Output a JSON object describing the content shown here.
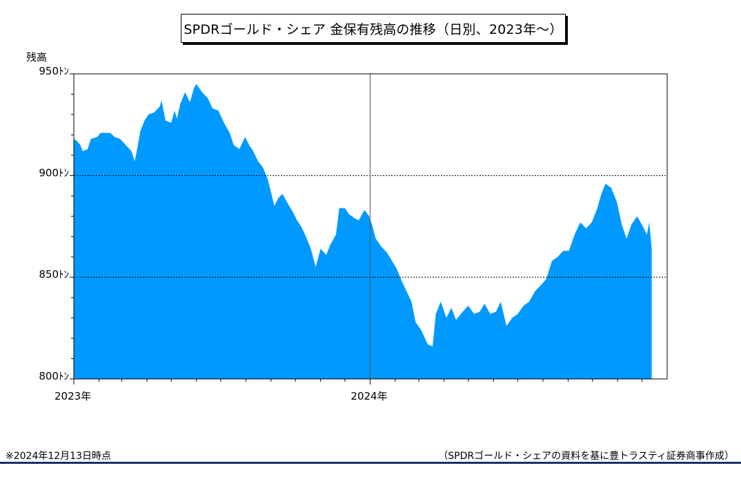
{
  "title": "SPDRゴールド・シェア 金保有残高の推移（日別、2023年～）",
  "y_axis_title": "残高",
  "footnote": "※2024年12月13日時点",
  "source": "（SPDRゴールド・シェアの資料を基に豊トラスティ証券商事作成）",
  "colors": {
    "area": "#0099ff",
    "rule": "#1b2f6b"
  },
  "chart_data": {
    "type": "area",
    "y_tick_labels": [
      "800ﾄﾝ",
      "850ﾄﾝ",
      "900ﾄﾝ",
      "950ﾄﾝ"
    ],
    "y_ticks": [
      800,
      850,
      900,
      950
    ],
    "ylim": [
      800,
      950
    ],
    "x_tick_labels": [
      "2023年",
      "2024年"
    ],
    "xlim": [
      "2023-01-01",
      "2025-01-01"
    ],
    "x_label_dates": [
      "2023-01-01",
      "2024-01-01"
    ],
    "x_minor_tick_months": [
      "2023-02-01",
      "2023-03-01",
      "2023-04-01",
      "2023-05-01",
      "2023-06-01",
      "2023-07-01",
      "2023-08-01",
      "2023-09-01",
      "2023-10-01",
      "2023-11-01",
      "2023-12-01",
      "2024-02-01",
      "2024-03-01",
      "2024-04-01",
      "2024-05-01",
      "2024-06-01",
      "2024-07-01",
      "2024-08-01",
      "2024-09-01",
      "2024-10-01",
      "2024-11-01",
      "2024-12-01"
    ],
    "grid": {
      "vertical_at": [
        "2024-01-01"
      ],
      "horizontal_dotted_at": [
        850,
        900
      ]
    },
    "series": [
      {
        "values": [
          [
            "2023-01-01",
            918
          ],
          [
            "2023-01-05",
            917
          ],
          [
            "2023-01-09",
            915
          ],
          [
            "2023-01-12",
            912
          ],
          [
            "2023-01-18",
            913
          ],
          [
            "2023-01-22",
            918
          ],
          [
            "2023-01-30",
            919
          ],
          [
            "2023-02-03",
            921
          ],
          [
            "2023-02-15",
            921
          ],
          [
            "2023-02-20",
            919
          ],
          [
            "2023-02-27",
            918
          ],
          [
            "2023-03-06",
            915
          ],
          [
            "2023-03-13",
            912
          ],
          [
            "2023-03-17",
            907
          ],
          [
            "2023-03-20",
            913
          ],
          [
            "2023-03-24",
            922
          ],
          [
            "2023-03-29",
            927
          ],
          [
            "2023-04-03",
            930
          ],
          [
            "2023-04-10",
            931
          ],
          [
            "2023-04-17",
            934
          ],
          [
            "2023-04-19",
            937
          ],
          [
            "2023-04-24",
            927
          ],
          [
            "2023-05-01",
            926
          ],
          [
            "2023-05-05",
            932
          ],
          [
            "2023-05-08",
            928
          ],
          [
            "2023-05-12",
            935
          ],
          [
            "2023-05-18",
            941
          ],
          [
            "2023-05-24",
            936
          ],
          [
            "2023-05-29",
            943
          ],
          [
            "2023-06-01",
            945
          ],
          [
            "2023-06-08",
            941
          ],
          [
            "2023-06-15",
            938
          ],
          [
            "2023-06-21",
            933
          ],
          [
            "2023-06-28",
            932
          ],
          [
            "2023-07-05",
            926
          ],
          [
            "2023-07-12",
            921
          ],
          [
            "2023-07-17",
            915
          ],
          [
            "2023-07-24",
            913
          ],
          [
            "2023-07-31",
            919
          ],
          [
            "2023-08-05",
            915
          ],
          [
            "2023-08-10",
            912
          ],
          [
            "2023-08-16",
            907
          ],
          [
            "2023-08-22",
            904
          ],
          [
            "2023-08-28",
            898
          ],
          [
            "2023-09-02",
            890
          ],
          [
            "2023-09-05",
            885
          ],
          [
            "2023-09-10",
            889
          ],
          [
            "2023-09-15",
            891
          ],
          [
            "2023-09-22",
            886
          ],
          [
            "2023-09-28",
            882
          ],
          [
            "2023-10-03",
            878
          ],
          [
            "2023-10-08",
            875
          ],
          [
            "2023-10-14",
            870
          ],
          [
            "2023-10-20",
            864
          ],
          [
            "2023-10-26",
            855
          ],
          [
            "2023-11-01",
            864
          ],
          [
            "2023-11-08",
            861
          ],
          [
            "2023-11-13",
            866
          ],
          [
            "2023-11-20",
            871
          ],
          [
            "2023-11-24",
            884
          ],
          [
            "2023-12-01",
            884
          ],
          [
            "2023-12-06",
            881
          ],
          [
            "2023-12-13",
            879
          ],
          [
            "2023-12-18",
            878
          ],
          [
            "2023-12-25",
            883
          ],
          [
            "2023-12-31",
            880
          ],
          [
            "2024-01-04",
            875
          ],
          [
            "2024-01-08",
            869
          ],
          [
            "2024-01-15",
            865
          ],
          [
            "2024-01-22",
            862
          ],
          [
            "2024-01-28",
            858
          ],
          [
            "2024-02-03",
            854
          ],
          [
            "2024-02-08",
            849
          ],
          [
            "2024-02-15",
            843
          ],
          [
            "2024-02-21",
            838
          ],
          [
            "2024-02-26",
            828
          ],
          [
            "2024-03-04",
            824
          ],
          [
            "2024-03-12",
            817
          ],
          [
            "2024-03-18",
            816
          ],
          [
            "2024-03-22",
            832
          ],
          [
            "2024-03-28",
            838
          ],
          [
            "2024-04-04",
            830
          ],
          [
            "2024-04-10",
            835
          ],
          [
            "2024-04-16",
            829
          ],
          [
            "2024-04-24",
            833
          ],
          [
            "2024-05-01",
            836
          ],
          [
            "2024-05-08",
            832
          ],
          [
            "2024-05-15",
            833
          ],
          [
            "2024-05-21",
            837
          ],
          [
            "2024-05-28",
            832
          ],
          [
            "2024-06-04",
            833
          ],
          [
            "2024-06-10",
            838
          ],
          [
            "2024-06-17",
            826
          ],
          [
            "2024-06-24",
            830
          ],
          [
            "2024-07-01",
            832
          ],
          [
            "2024-07-08",
            836
          ],
          [
            "2024-07-15",
            838
          ],
          [
            "2024-07-22",
            843
          ],
          [
            "2024-07-29",
            846
          ],
          [
            "2024-08-05",
            849
          ],
          [
            "2024-08-12",
            858
          ],
          [
            "2024-08-19",
            860
          ],
          [
            "2024-08-26",
            863
          ],
          [
            "2024-09-02",
            863
          ],
          [
            "2024-09-09",
            871
          ],
          [
            "2024-09-16",
            877
          ],
          [
            "2024-09-23",
            874
          ],
          [
            "2024-09-30",
            877
          ],
          [
            "2024-10-07",
            884
          ],
          [
            "2024-10-12",
            891
          ],
          [
            "2024-10-17",
            896
          ],
          [
            "2024-10-24",
            894
          ],
          [
            "2024-10-31",
            887
          ],
          [
            "2024-11-06",
            876
          ],
          [
            "2024-11-12",
            869
          ],
          [
            "2024-11-18",
            876
          ],
          [
            "2024-11-25",
            880
          ],
          [
            "2024-12-02",
            875
          ],
          [
            "2024-12-07",
            871
          ],
          [
            "2024-12-10",
            877
          ],
          [
            "2024-12-13",
            864
          ]
        ]
      }
    ]
  }
}
